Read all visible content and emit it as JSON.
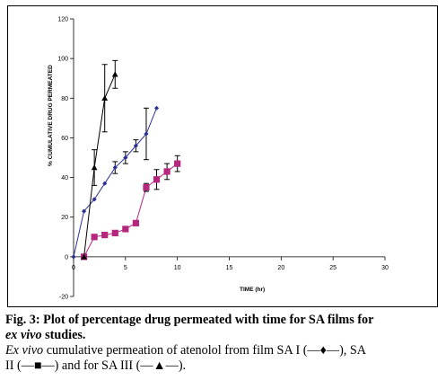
{
  "chart_data": {
    "type": "line",
    "xlabel": "TIME (hr)",
    "ylabel": "% CUMULATIVE DRUG PERMEATED",
    "xlim": [
      0,
      30
    ],
    "ylim": [
      -20,
      120
    ],
    "xticks": [
      0,
      5,
      10,
      15,
      20,
      25,
      30
    ],
    "yticks": [
      -20,
      0,
      20,
      40,
      60,
      80,
      100,
      120
    ],
    "grid": false,
    "legend": "none",
    "series": [
      {
        "name": "SA I",
        "marker": "diamond",
        "color": "#2e3192",
        "x": [
          0,
          1,
          2,
          3,
          4,
          5,
          6,
          7,
          8
        ],
        "y": [
          0,
          23,
          29,
          37,
          45,
          50,
          56,
          62,
          75
        ],
        "err": [
          0,
          0,
          0,
          0,
          3,
          3,
          3,
          13,
          0
        ]
      },
      {
        "name": "SA II",
        "marker": "square",
        "color": "#b5267e",
        "x": [
          1,
          2,
          3,
          4,
          5,
          6,
          7,
          8,
          9,
          10
        ],
        "y": [
          0,
          10,
          11,
          12,
          14,
          17,
          35,
          39,
          43,
          47
        ],
        "err": [
          0,
          0,
          0,
          0,
          0,
          0,
          2,
          5,
          4,
          4
        ]
      },
      {
        "name": "SA III",
        "marker": "triangle",
        "color": "#000000",
        "x": [
          1,
          2,
          3,
          4
        ],
        "y": [
          0,
          45,
          80,
          92
        ],
        "err": [
          0,
          9,
          17,
          7
        ]
      }
    ]
  },
  "caption": {
    "title": "Fig. 3: Plot of percentage drug permeated with time for SA films for",
    "title_italic": "ex vivo",
    "title_end": " studies.",
    "body_italic": "Ex vivo",
    "body_1": " cumulative permeation of atenolol from film SA I (—♦—), SA",
    "body_2": "II (—■—) and for SA III (—▲—)."
  }
}
